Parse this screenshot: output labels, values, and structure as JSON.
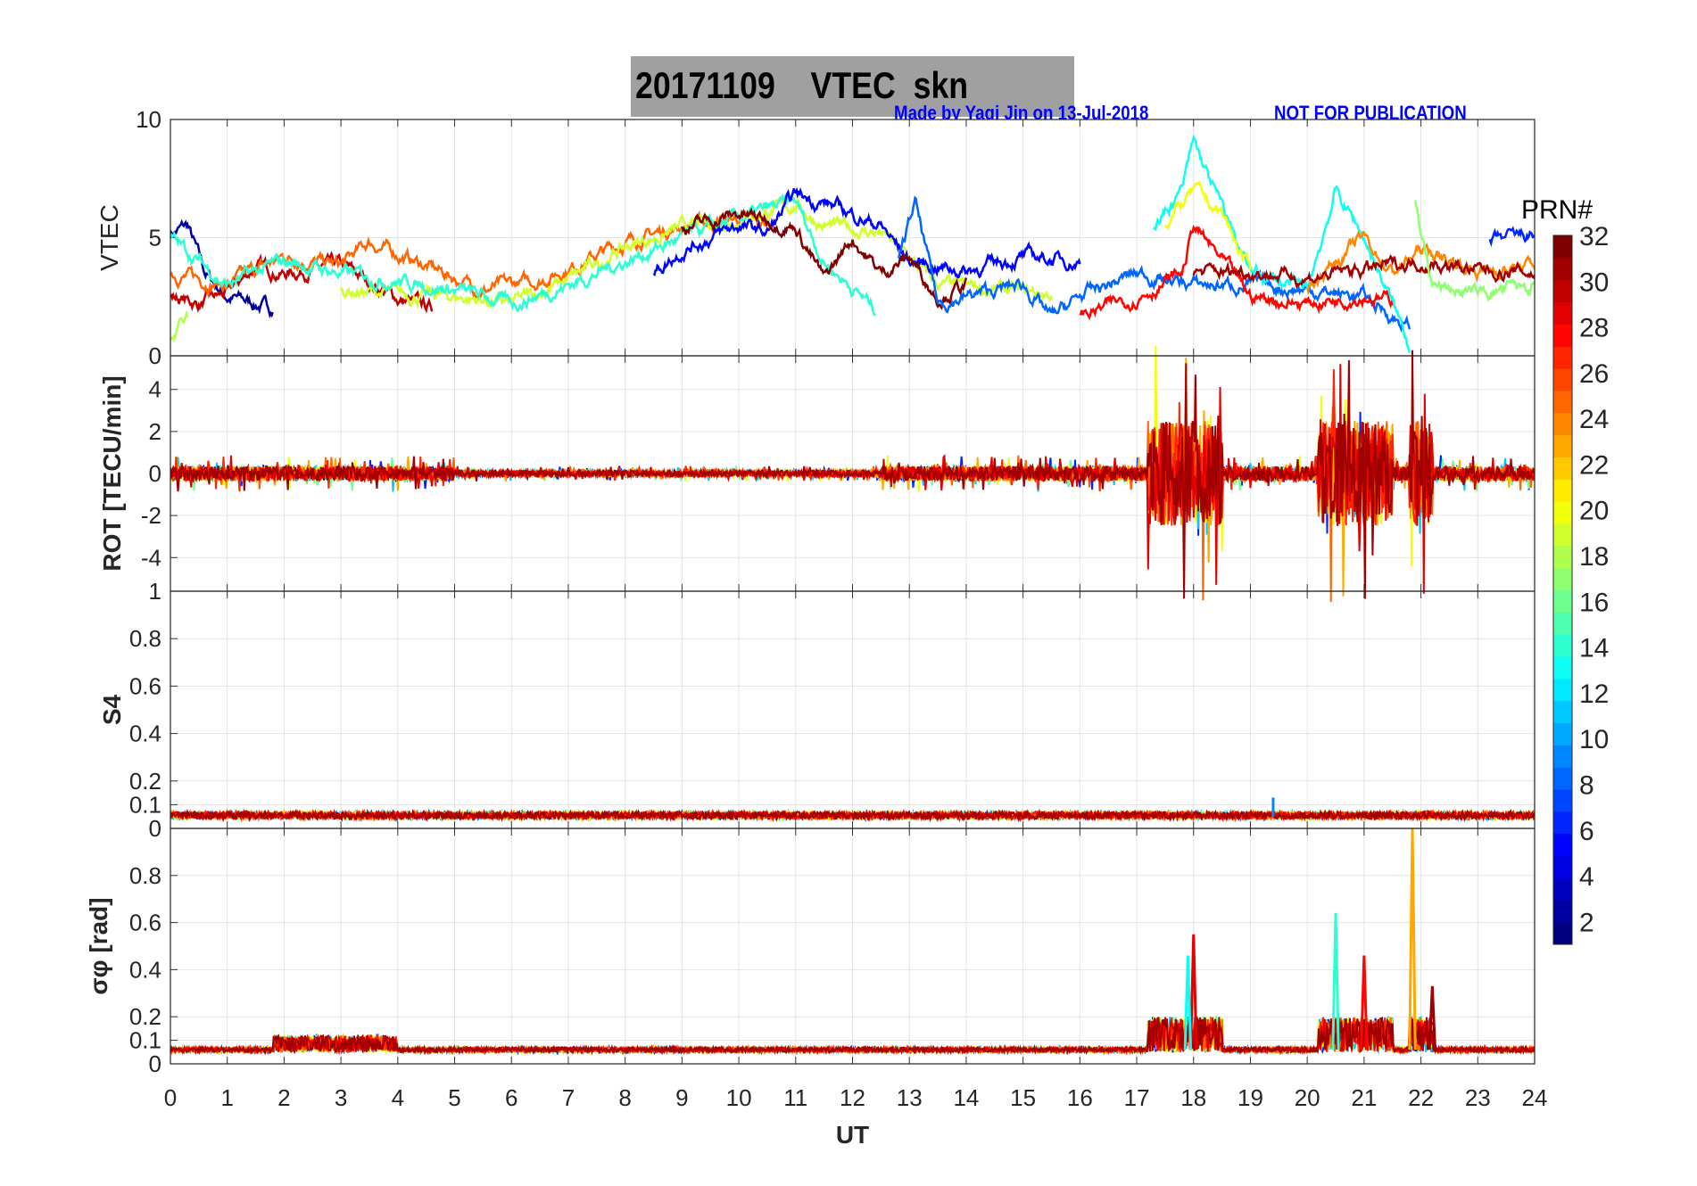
{
  "title": "20171109    VTEC  skn",
  "credit": "Made by Yaqi Jin on 13-Jul-2018",
  "notice": "NOT FOR PUBLICATION",
  "chart_data": {
    "type": "line",
    "xlabel": "UT",
    "xlim": [
      0,
      24
    ],
    "xticks": [
      0,
      1,
      2,
      3,
      4,
      5,
      6,
      7,
      8,
      9,
      10,
      11,
      12,
      13,
      14,
      15,
      16,
      17,
      18,
      19,
      20,
      21,
      22,
      23,
      24
    ],
    "colorbar": {
      "label": "PRN#",
      "range": [
        1,
        32
      ],
      "ticks": [
        2,
        4,
        6,
        8,
        10,
        12,
        14,
        16,
        18,
        20,
        22,
        24,
        26,
        28,
        30,
        32
      ],
      "colormap": "jet"
    },
    "panels": [
      {
        "name": "vtec",
        "ylabel": "VTEC",
        "ylim": [
          0,
          10
        ],
        "yticks": [
          0,
          5,
          10
        ],
        "grid": true
      },
      {
        "name": "rot",
        "ylabel": "ROT [TECU/min]",
        "ylim": [
          -5.6,
          5.6
        ],
        "yticks": [
          -4,
          -2,
          0,
          2,
          4
        ],
        "grid": true
      },
      {
        "name": "s4",
        "ylabel": "S4",
        "ylim": [
          0,
          1
        ],
        "yticks": [
          0,
          0.1,
          0.2,
          0.4,
          0.6,
          0.8,
          1
        ],
        "grid": true
      },
      {
        "name": "sigma",
        "ylabel": "σφ [rad]",
        "ylim": [
          0,
          1
        ],
        "yticks": [
          0,
          0.1,
          0.2,
          0.4,
          0.6,
          0.8
        ],
        "grid": true
      }
    ],
    "vtec_traces": [
      {
        "prn": 2,
        "t": [
          0,
          0.3,
          0.6,
          1,
          1.5,
          1.8
        ],
        "v": [
          5.2,
          5.5,
          3.5,
          2.5,
          2.2,
          2.0
        ]
      },
      {
        "prn": 30,
        "t": [
          0,
          0.5,
          1,
          1.5,
          2,
          3,
          4,
          4.6
        ],
        "v": [
          2.5,
          2.2,
          2.6,
          3.8,
          3.5,
          3.8,
          2.4,
          2.0
        ]
      },
      {
        "prn": 25,
        "t": [
          0,
          1,
          2,
          3,
          3.5,
          4.5,
          5.5,
          6.5,
          8,
          9,
          10,
          10.5
        ],
        "v": [
          3.5,
          3,
          4.2,
          3.8,
          4.8,
          3.8,
          2.8,
          3.2,
          4.8,
          5.5,
          5.8,
          5.5
        ]
      },
      {
        "prn": 19,
        "t": [
          3,
          4,
          5,
          6,
          7,
          8,
          9,
          10,
          11,
          11.5,
          12.5,
          13.5,
          14.5,
          15.5
        ],
        "v": [
          2.8,
          2.6,
          2.5,
          2.2,
          3.2,
          4.6,
          5.4,
          5.8,
          6.4,
          5.5,
          5.2,
          3.0,
          2.8,
          2.6
        ]
      },
      {
        "prn": 14,
        "t": [
          0,
          1,
          2,
          3,
          4,
          5,
          6,
          7,
          8,
          9,
          10,
          11,
          11.5,
          12.4
        ],
        "v": [
          5,
          3,
          4,
          3.5,
          3.2,
          2.8,
          2.2,
          3,
          4,
          5,
          5.8,
          6.5,
          4,
          2.0
        ]
      },
      {
        "prn": 5,
        "t": [
          8.5,
          9,
          10,
          10.5,
          11,
          11.5,
          12,
          12.5,
          13,
          13.5,
          14,
          15,
          16
        ],
        "v": [
          3.5,
          4.5,
          5.5,
          5.2,
          6.8,
          6.5,
          6,
          5.5,
          4,
          3.8,
          3.6,
          4.2,
          4.0
        ]
      },
      {
        "prn": 32,
        "t": [
          9,
          10,
          11,
          11.5,
          12,
          12.5,
          13,
          13.5,
          14
        ],
        "v": [
          5.4,
          6,
          5.5,
          3.2,
          5,
          3.5,
          4.2,
          2.5,
          3.0
        ]
      },
      {
        "prn": 8,
        "t": [
          12.8,
          13.1,
          13.5,
          14,
          15,
          15.5,
          16,
          17,
          18,
          19,
          20,
          21,
          21.8
        ],
        "v": [
          4,
          6.5,
          2.2,
          2.5,
          3,
          1.6,
          2.5,
          3.5,
          3,
          3,
          2.8,
          2.5,
          1.2
        ]
      },
      {
        "prn": 28,
        "t": [
          16,
          17,
          17.8,
          18,
          19,
          20,
          21,
          21.5
        ],
        "v": [
          1.7,
          2.5,
          3.5,
          5.5,
          2.5,
          2.2,
          2.6,
          2.3
        ]
      },
      {
        "prn": 13,
        "t": [
          17.3,
          17.8,
          18,
          19,
          20,
          20.5,
          21,
          21.8
        ],
        "v": [
          5.5,
          7,
          9,
          3.5,
          2.8,
          7,
          5,
          0.5
        ]
      },
      {
        "prn": 20,
        "t": [
          17.5,
          18,
          18.5,
          19
        ],
        "v": [
          5.5,
          7,
          6,
          3.5
        ]
      },
      {
        "prn": 24,
        "t": [
          20,
          21,
          21.5,
          22,
          23,
          24
        ],
        "v": [
          3,
          5,
          3.5,
          4.5,
          3.6,
          3.8
        ]
      },
      {
        "prn": 31,
        "t": [
          18,
          19,
          20,
          22,
          23,
          24
        ],
        "v": [
          3.5,
          3.6,
          3.3,
          4,
          3.6,
          3.5
        ]
      },
      {
        "prn": 17,
        "t": [
          21.9,
          22.2,
          23,
          24
        ],
        "v": [
          6.5,
          3,
          2.6,
          3
        ]
      },
      {
        "prn": 6,
        "t": [
          23.2,
          24
        ],
        "v": [
          4.8,
          5.1
        ]
      },
      {
        "prn": 18,
        "t": [
          0,
          0.3
        ],
        "v": [
          0.6,
          1.5
        ]
      }
    ],
    "activity": {
      "rot_active_periods": [
        [
          17.2,
          18.5
        ],
        [
          20.2,
          21.5
        ],
        [
          21.8,
          22.2
        ]
      ],
      "sigma_peaks": [
        {
          "t": 18,
          "v": 0.55,
          "prn": 29
        },
        {
          "t": 17.9,
          "v": 0.46,
          "prn": 13
        },
        {
          "t": 20.5,
          "v": 0.64,
          "prn": 14
        },
        {
          "t": 21,
          "v": 0.46,
          "prn": 28
        },
        {
          "t": 21.85,
          "v": 1.0,
          "prn": 23
        },
        {
          "t": 22.2,
          "v": 0.33,
          "prn": 31
        }
      ],
      "s4_peak": {
        "t": 19.4,
        "v": 0.13,
        "prn": 9
      }
    }
  }
}
